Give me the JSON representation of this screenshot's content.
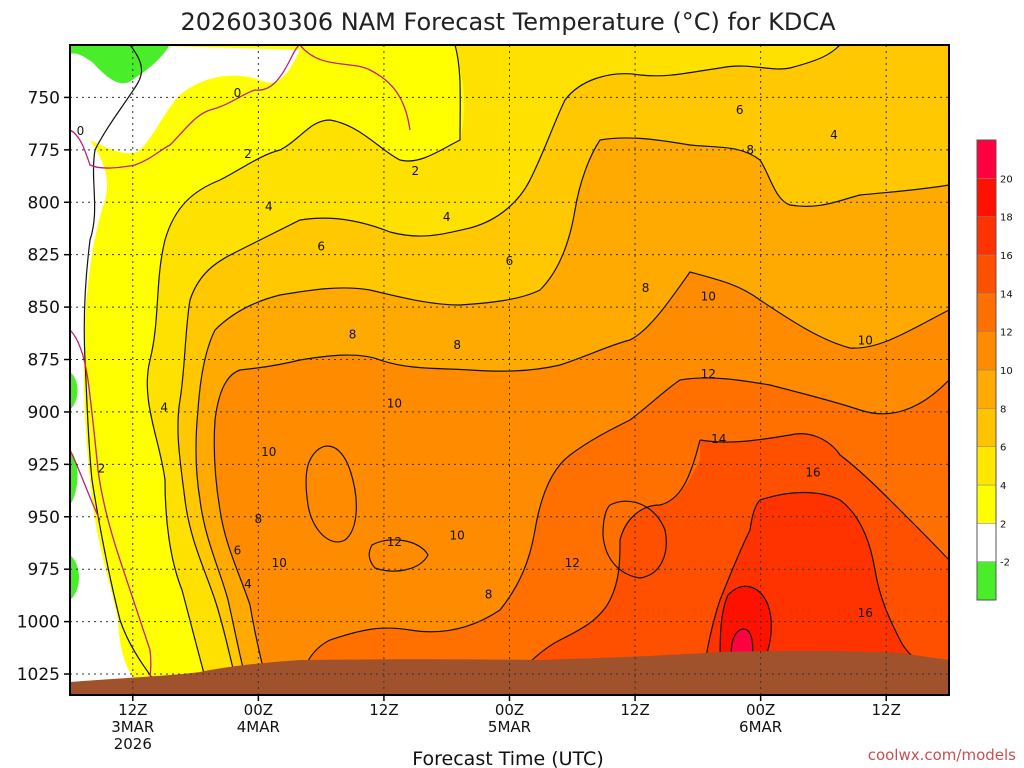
{
  "chart_data": {
    "type": "heatmap",
    "title": "2026030306 NAM Forecast Temperature (°C) for KDCA",
    "xlabel": "Forecast Time (UTC)",
    "ylabel": "",
    "credit": "coolwx.com/models",
    "y_axis": {
      "unit": "hPa",
      "ticks": [
        "750",
        "775",
        "800",
        "825",
        "850",
        "875",
        "900",
        "925",
        "950",
        "975",
        "1000",
        "1025"
      ],
      "range": [
        725,
        1035
      ],
      "inverted": true
    },
    "x_axis": {
      "range_hours": [
        0,
        84
      ],
      "ticks": [
        {
          "hour": 6,
          "line1": "12Z",
          "line2": "3MAR",
          "line3": "2026"
        },
        {
          "hour": 18,
          "line1": "00Z",
          "line2": "4MAR",
          "line3": ""
        },
        {
          "hour": 30,
          "line1": "12Z",
          "line2": "",
          "line3": ""
        },
        {
          "hour": 42,
          "line1": "00Z",
          "line2": "5MAR",
          "line3": ""
        },
        {
          "hour": 54,
          "line1": "12Z",
          "line2": "",
          "line3": ""
        },
        {
          "hour": 66,
          "line1": "00Z",
          "line2": "6MAR",
          "line3": ""
        },
        {
          "hour": 78,
          "line1": "12Z",
          "line2": "",
          "line3": ""
        }
      ]
    },
    "grid": true,
    "colorbar": {
      "placement": "right",
      "labels": [
        "-2",
        "2",
        "4",
        "6",
        "8",
        "10",
        "12",
        "14",
        "16",
        "18",
        "20"
      ],
      "colors": [
        "#49ed2a",
        "#ffffff",
        "#ffff00",
        "#ffe700",
        "#ffc300",
        "#ffaa00",
        "#ff8c00",
        "#ff7000",
        "#ff5000",
        "#ff3300",
        "#ff1100",
        "#ff0040"
      ]
    },
    "terrain_color": "#a0522d",
    "contour_labels": [
      {
        "value": "0",
        "hour": 16,
        "p": 748
      },
      {
        "value": "0",
        "hour": 1,
        "p": 766
      },
      {
        "value": "2",
        "hour": 17,
        "p": 777
      },
      {
        "value": "2",
        "hour": 33,
        "p": 785
      },
      {
        "value": "2",
        "hour": 3,
        "p": 927
      },
      {
        "value": "4",
        "hour": 19,
        "p": 802
      },
      {
        "value": "4",
        "hour": 36,
        "p": 807
      },
      {
        "value": "4",
        "hour": 73,
        "p": 768
      },
      {
        "value": "4",
        "hour": 9,
        "p": 898
      },
      {
        "value": "4",
        "hour": 17,
        "p": 982
      },
      {
        "value": "6",
        "hour": 64,
        "p": 756
      },
      {
        "value": "6",
        "hour": 24,
        "p": 821
      },
      {
        "value": "6",
        "hour": 42,
        "p": 828
      },
      {
        "value": "6",
        "hour": 16,
        "p": 966
      },
      {
        "value": "8",
        "hour": 65,
        "p": 775
      },
      {
        "value": "8",
        "hour": 55,
        "p": 841
      },
      {
        "value": "8",
        "hour": 27,
        "p": 863
      },
      {
        "value": "8",
        "hour": 37,
        "p": 868
      },
      {
        "value": "8",
        "hour": 18,
        "p": 951
      },
      {
        "value": "8",
        "hour": 40,
        "p": 987
      },
      {
        "value": "10",
        "hour": 61,
        "p": 845
      },
      {
        "value": "10",
        "hour": 76,
        "p": 866
      },
      {
        "value": "10",
        "hour": 31,
        "p": 896
      },
      {
        "value": "10",
        "hour": 19,
        "p": 919
      },
      {
        "value": "10",
        "hour": 20,
        "p": 972
      },
      {
        "value": "10",
        "hour": 37,
        "p": 959
      },
      {
        "value": "12",
        "hour": 61,
        "p": 882
      },
      {
        "value": "12",
        "hour": 31,
        "p": 962
      },
      {
        "value": "12",
        "hour": 48,
        "p": 972
      },
      {
        "value": "14",
        "hour": 62,
        "p": 913
      },
      {
        "value": "16",
        "hour": 71,
        "p": 929
      },
      {
        "value": "16",
        "hour": 76,
        "p": 996
      }
    ]
  }
}
